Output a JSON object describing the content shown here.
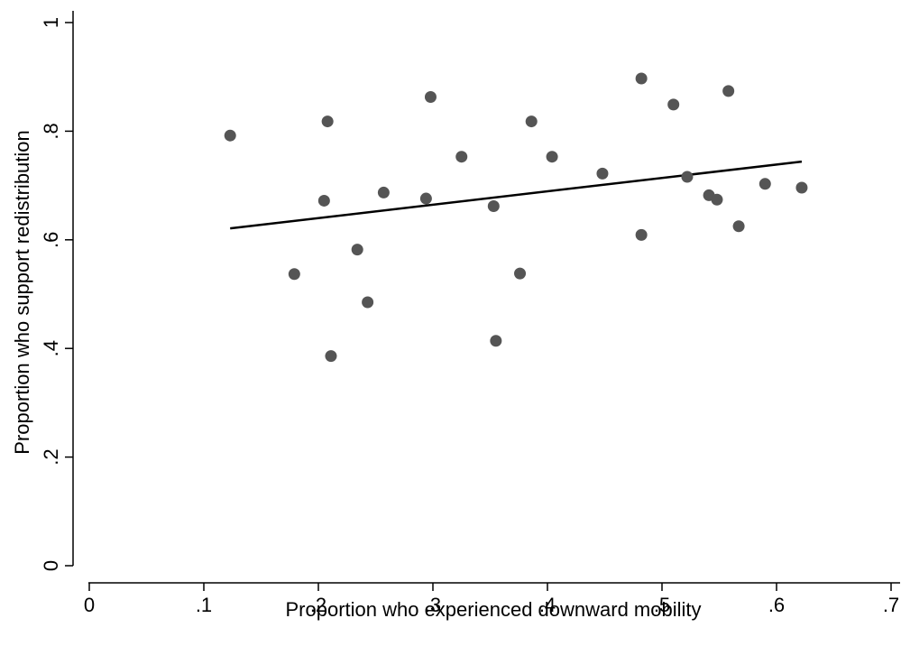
{
  "chart_data": {
    "type": "scatter",
    "title": "",
    "xlabel": "Proportion who experienced downward mobility",
    "ylabel": "Proportion who support redistribution",
    "xlim": [
      0,
      0.7
    ],
    "ylim": [
      0,
      1
    ],
    "xticks": [
      0,
      0.1,
      0.2,
      0.3,
      0.4,
      0.5,
      0.6,
      0.7
    ],
    "xtick_labels": [
      "0",
      ".1",
      ".2",
      ".3",
      ".4",
      ".5",
      ".6",
      ".7"
    ],
    "yticks": [
      0,
      0.2,
      0.4,
      0.6,
      0.8,
      1
    ],
    "ytick_labels": [
      "0",
      ".2",
      ".4",
      ".6",
      ".8",
      "1"
    ],
    "grid": false,
    "marker_color": "#555555",
    "line_color": "#000000",
    "points": [
      {
        "x": 0.123,
        "y": 0.792
      },
      {
        "x": 0.179,
        "y": 0.537
      },
      {
        "x": 0.205,
        "y": 0.672
      },
      {
        "x": 0.208,
        "y": 0.818
      },
      {
        "x": 0.211,
        "y": 0.386
      },
      {
        "x": 0.234,
        "y": 0.582
      },
      {
        "x": 0.243,
        "y": 0.485
      },
      {
        "x": 0.257,
        "y": 0.687
      },
      {
        "x": 0.294,
        "y": 0.676
      },
      {
        "x": 0.298,
        "y": 0.863
      },
      {
        "x": 0.325,
        "y": 0.753
      },
      {
        "x": 0.353,
        "y": 0.662
      },
      {
        "x": 0.355,
        "y": 0.414
      },
      {
        "x": 0.376,
        "y": 0.538
      },
      {
        "x": 0.386,
        "y": 0.818
      },
      {
        "x": 0.404,
        "y": 0.753
      },
      {
        "x": 0.448,
        "y": 0.722
      },
      {
        "x": 0.482,
        "y": 0.897
      },
      {
        "x": 0.482,
        "y": 0.609
      },
      {
        "x": 0.51,
        "y": 0.849
      },
      {
        "x": 0.522,
        "y": 0.716
      },
      {
        "x": 0.541,
        "y": 0.682
      },
      {
        "x": 0.548,
        "y": 0.674
      },
      {
        "x": 0.558,
        "y": 0.874
      },
      {
        "x": 0.567,
        "y": 0.625
      },
      {
        "x": 0.59,
        "y": 0.703
      },
      {
        "x": 0.622,
        "y": 0.696
      }
    ],
    "fit_line": [
      {
        "x": 0.123,
        "y": 0.621
      },
      {
        "x": 0.622,
        "y": 0.744
      }
    ]
  }
}
